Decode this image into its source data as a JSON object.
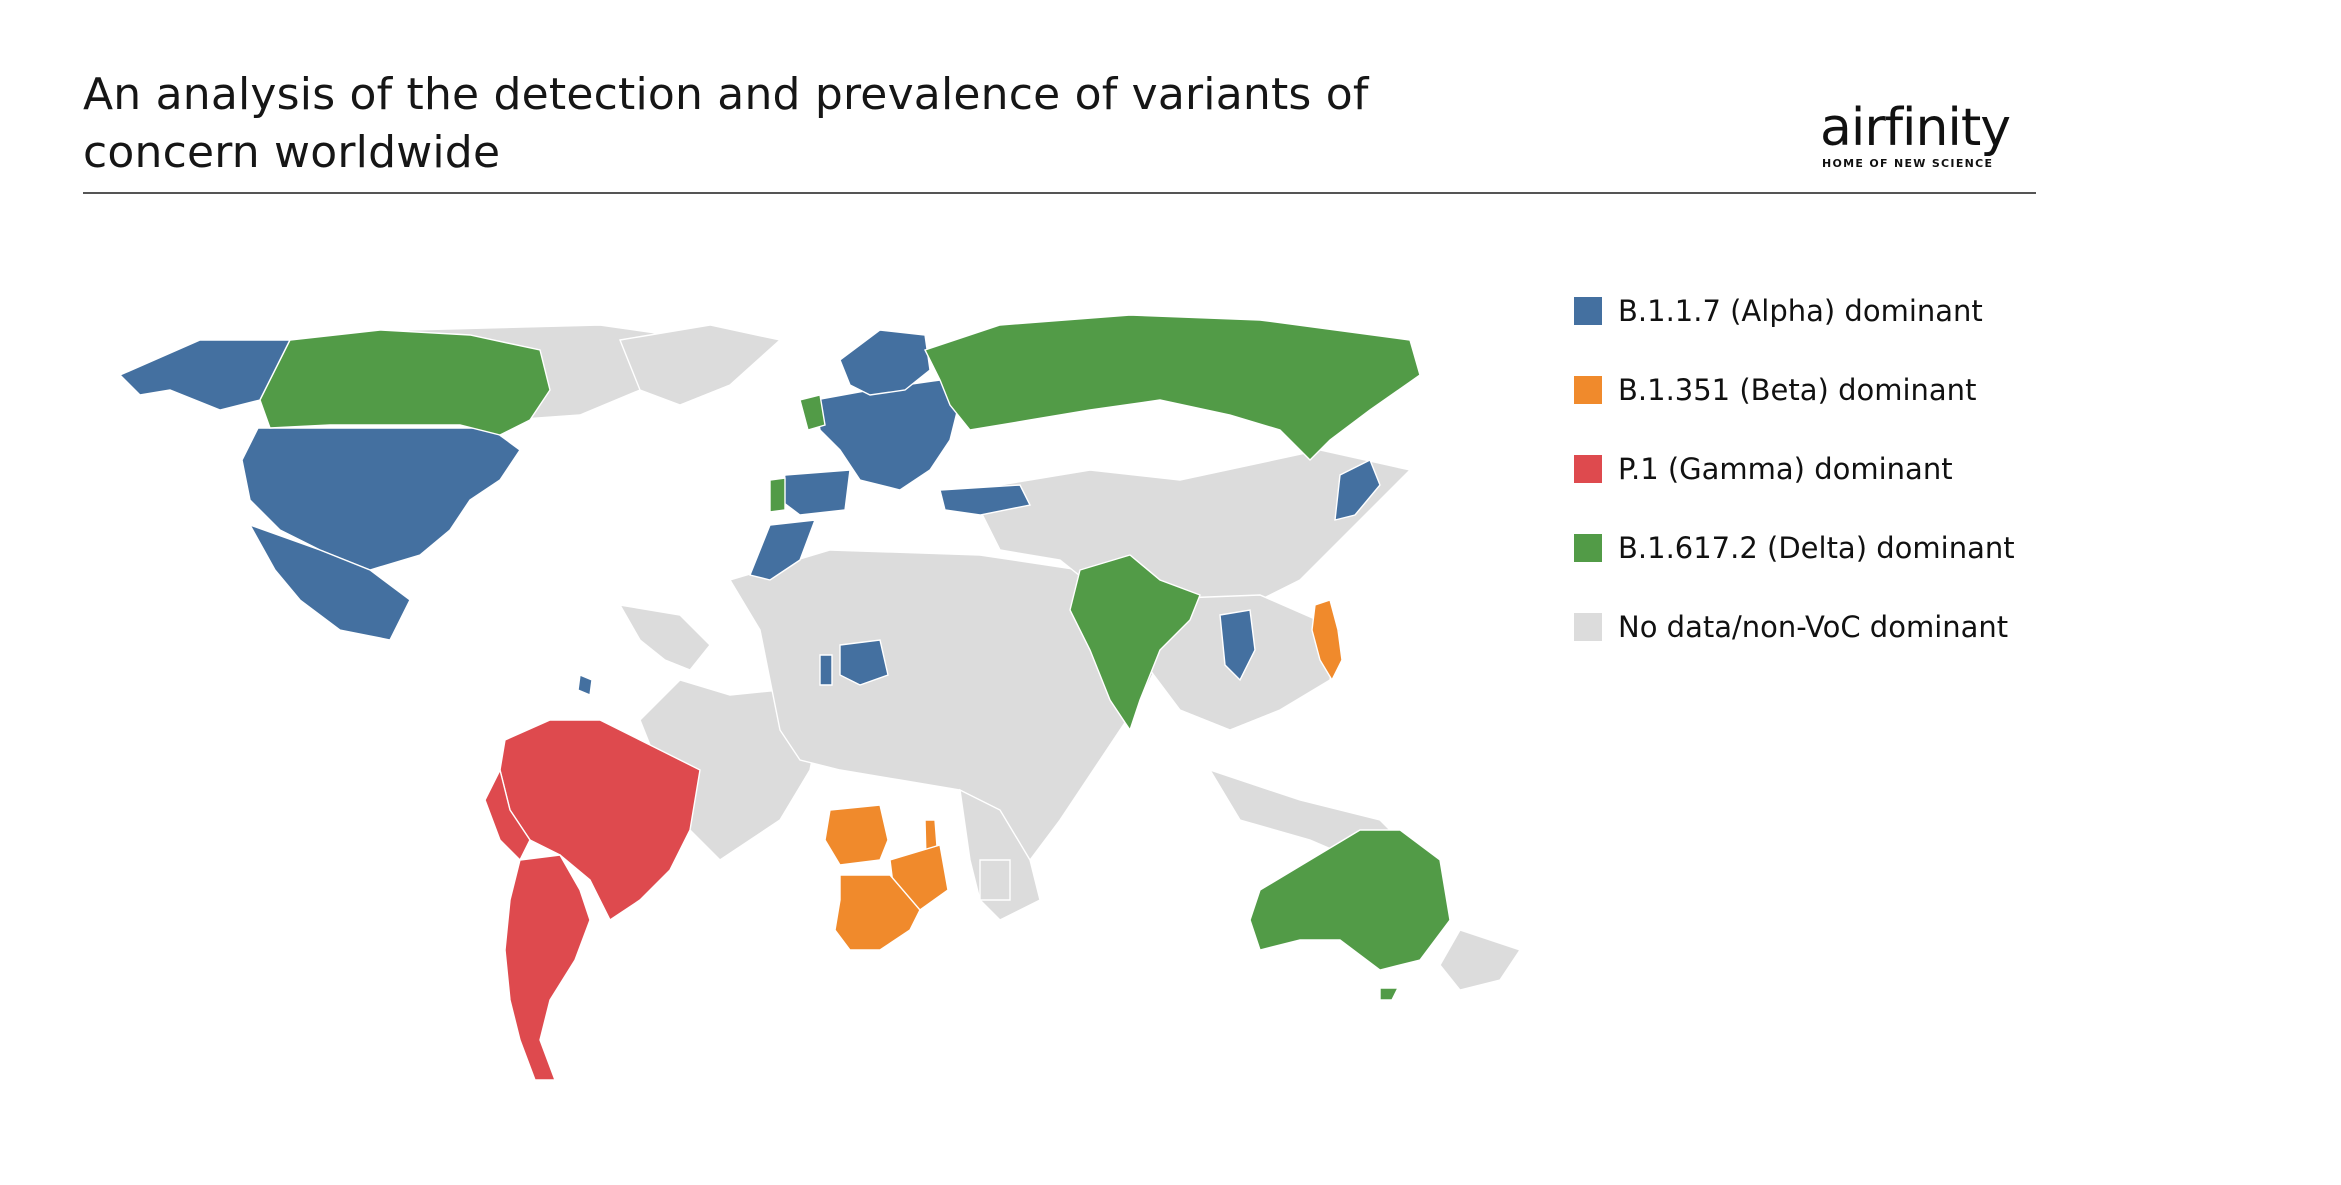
{
  "title": "An analysis of the detection and prevalence of variants of concern worldwide",
  "logo": {
    "wordmark": "airfinity",
    "tagline": "HOME OF NEW SCIENCE"
  },
  "colors": {
    "alpha": "#4470a0",
    "beta": "#f08a2c",
    "gamma": "#de4a4e",
    "delta": "#529b47",
    "none": "#dcdcdc"
  },
  "legend": [
    {
      "key": "alpha",
      "label": "B.1.1.7 (Alpha) dominant"
    },
    {
      "key": "beta",
      "label": "B.1.351 (Beta) dominant"
    },
    {
      "key": "gamma",
      "label": "P.1 (Gamma) dominant"
    },
    {
      "key": "delta",
      "label": "B.1.617.2 (Delta) dominant"
    },
    {
      "key": "none",
      "label": "No data/non-VoC dominant"
    }
  ],
  "regions": [
    {
      "region": "Alaska",
      "category": "alpha"
    },
    {
      "region": "Canada",
      "category": "delta"
    },
    {
      "region": "United States",
      "category": "alpha"
    },
    {
      "region": "Mexico",
      "category": "alpha"
    },
    {
      "region": "Brazil",
      "category": "gamma"
    },
    {
      "region": "Argentina",
      "category": "gamma"
    },
    {
      "region": "Chile",
      "category": "gamma"
    },
    {
      "region": "Paraguay",
      "category": "gamma"
    },
    {
      "region": "Uruguay",
      "category": "gamma"
    },
    {
      "region": "Peru",
      "category": "gamma"
    },
    {
      "region": "Suriname",
      "category": "alpha"
    },
    {
      "region": "United Kingdom",
      "category": "delta"
    },
    {
      "region": "Portugal",
      "category": "delta"
    },
    {
      "region": "Spain",
      "category": "alpha"
    },
    {
      "region": "Morocco",
      "category": "alpha"
    },
    {
      "region": "Western & Central Europe",
      "category": "alpha"
    },
    {
      "region": "Scandinavia",
      "category": "alpha"
    },
    {
      "region": "Turkey",
      "category": "alpha"
    },
    {
      "region": "Russia",
      "category": "delta"
    },
    {
      "region": "India",
      "category": "delta"
    },
    {
      "region": "Nigeria",
      "category": "alpha"
    },
    {
      "region": "Togo",
      "category": "alpha"
    },
    {
      "region": "Thailand",
      "category": "alpha"
    },
    {
      "region": "Japan",
      "category": "alpha"
    },
    {
      "region": "Angola",
      "category": "beta"
    },
    {
      "region": "Malawi",
      "category": "beta"
    },
    {
      "region": "Zimbabwe",
      "category": "beta"
    },
    {
      "region": "Mozambique",
      "category": "beta"
    },
    {
      "region": "Botswana",
      "category": "beta"
    },
    {
      "region": "South Africa",
      "category": "beta"
    },
    {
      "region": "Philippines",
      "category": "beta"
    },
    {
      "region": "Australia",
      "category": "delta"
    }
  ]
}
